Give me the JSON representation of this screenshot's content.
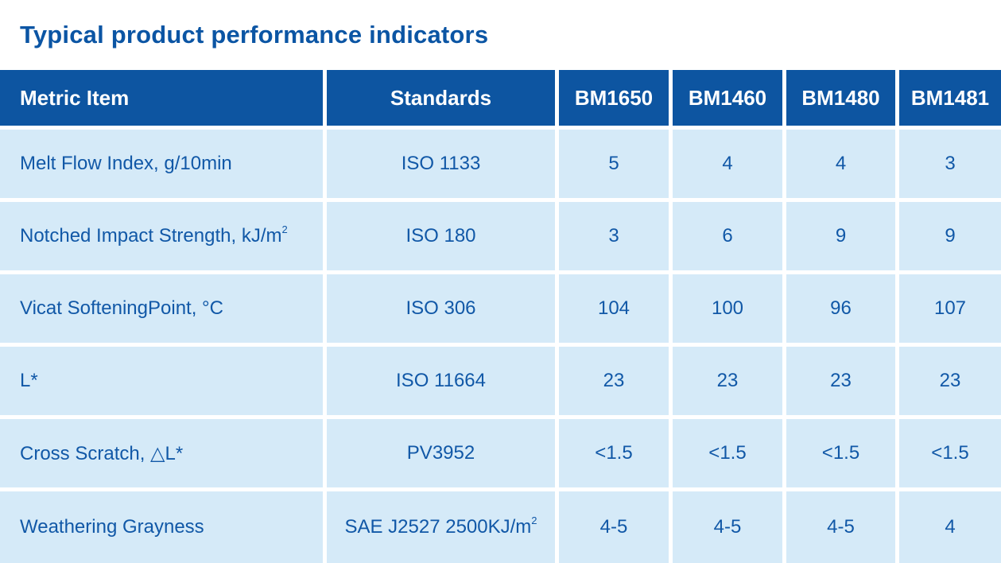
{
  "title": "Typical product performance indicators",
  "colors": {
    "header_bg": "#0D55A1",
    "header_text": "#FFFFFF",
    "cell_bg": "#D5EAF8",
    "cell_text": "#1158A7",
    "title_text": "#0B55A4"
  },
  "table": {
    "headers": [
      "Metric Item",
      "Standards",
      "BM1650",
      "BM1460",
      "BM1480",
      "BM1481"
    ],
    "rows": [
      {
        "metric": "Melt Flow Index, g/10min",
        "metric_sup": "",
        "standard": "ISO 1133",
        "standard_sup": "",
        "values": [
          "5",
          "4",
          "4",
          "3"
        ]
      },
      {
        "metric": "Notched Impact Strength, kJ/m",
        "metric_sup": "2",
        "standard": "ISO 180",
        "standard_sup": "",
        "values": [
          "3",
          "6",
          "9",
          "9"
        ]
      },
      {
        "metric": "Vicat SofteningPoint, °C",
        "metric_sup": "",
        "standard": "ISO 306",
        "standard_sup": "",
        "values": [
          "104",
          "100",
          "96",
          "107"
        ]
      },
      {
        "metric": "L*",
        "metric_sup": "",
        "standard": "ISO 11664",
        "standard_sup": "",
        "values": [
          "23",
          "23",
          "23",
          "23"
        ]
      },
      {
        "metric": "Cross Scratch, △L*",
        "metric_sup": "",
        "standard": "PV3952",
        "standard_sup": "",
        "values": [
          "<1.5",
          "<1.5",
          "<1.5",
          "<1.5"
        ]
      },
      {
        "metric": "Weathering Grayness",
        "metric_sup": "",
        "standard": "SAE J2527 2500KJ/m",
        "standard_sup": "2",
        "values": [
          "4-5",
          "4-5",
          "4-5",
          "4"
        ]
      }
    ]
  }
}
